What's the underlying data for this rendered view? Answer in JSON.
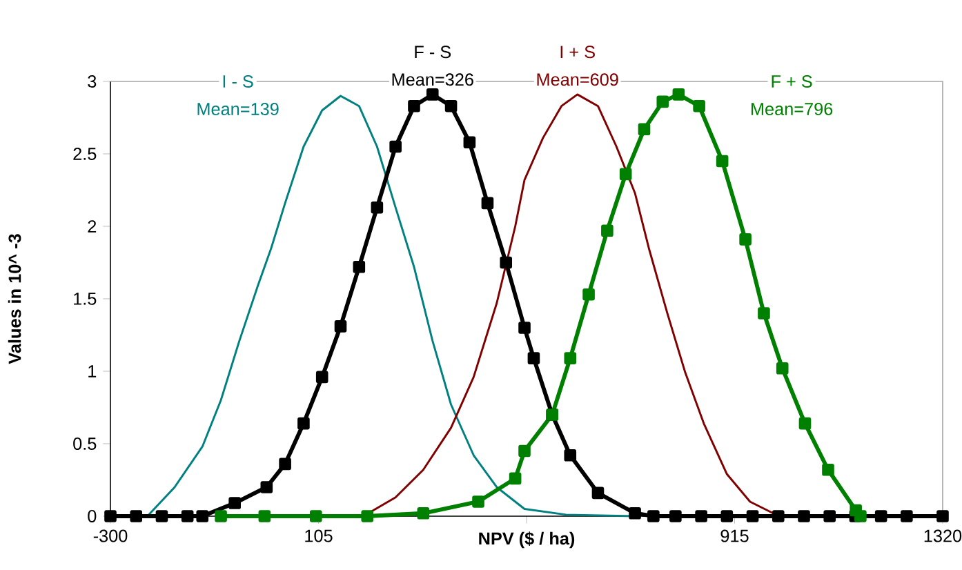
{
  "chart_data": {
    "type": "line",
    "xlabel": "NPV ($ / ha)",
    "ylabel": "Values in 10^ -3",
    "xlim": [
      -300,
      1320
    ],
    "ylim": [
      0,
      3
    ],
    "xticks": [
      -300,
      105,
      {
        "value": 510,
        "label": null
      },
      915,
      1320
    ],
    "yticks": [
      0,
      0.5,
      1,
      1.5,
      2,
      2.5,
      3
    ],
    "grid": false,
    "series": [
      {
        "name": "I - S",
        "color": "#008080",
        "marker": "none",
        "x": [
          -300,
          -228,
          -175,
          -121,
          -85,
          -49,
          -13,
          13,
          40,
          76,
          112,
          148,
          184,
          219,
          255,
          291,
          327,
          363,
          407,
          452,
          506,
          587,
          721
        ],
        "values": [
          0,
          0,
          0.2,
          0.48,
          0.8,
          1.21,
          1.59,
          1.85,
          2.16,
          2.55,
          2.8,
          2.9,
          2.83,
          2.55,
          2.13,
          1.72,
          1.21,
          0.77,
          0.42,
          0.2,
          0.05,
          0.01,
          0
        ]
      },
      {
        "name": "F - S",
        "color": "#000000",
        "marker": "square",
        "x": [
          -300,
          -250,
          -200,
          -150,
          -121,
          -58,
          4,
          40,
          76,
          112,
          148,
          184,
          219,
          255,
          291,
          327,
          363,
          399,
          434,
          470,
          506,
          524,
          560,
          595,
          649,
          721,
          757,
          800,
          850,
          900,
          950,
          1000,
          1050,
          1100,
          1150,
          1200,
          1250,
          1320
        ],
        "values": [
          0,
          0,
          0,
          0,
          0,
          0.09,
          0.2,
          0.36,
          0.64,
          0.96,
          1.31,
          1.72,
          2.13,
          2.55,
          2.83,
          2.91,
          2.83,
          2.58,
          2.16,
          1.75,
          1.3,
          1.09,
          0.7,
          0.42,
          0.16,
          0.02,
          0,
          0,
          0,
          0,
          0,
          0,
          0,
          0,
          0,
          0,
          0,
          0
        ]
      },
      {
        "name": "I + S",
        "color": "#800000",
        "marker": "none",
        "x": [
          202,
          255,
          309,
          363,
          407,
          452,
          488,
          506,
          542,
          578,
          609,
          649,
          685,
          721,
          748,
          784,
          819,
          855,
          900,
          945,
          990
        ],
        "values": [
          0.02,
          0.13,
          0.32,
          0.61,
          0.96,
          1.47,
          2.0,
          2.32,
          2.61,
          2.83,
          2.91,
          2.83,
          2.55,
          2.23,
          1.85,
          1.4,
          0.99,
          0.64,
          0.29,
          0.1,
          0.02
        ]
      },
      {
        "name": "F + S",
        "color": "#008000",
        "marker": "square",
        "x": [
          -85,
          0,
          100,
          200,
          309,
          416,
          488,
          506,
          560,
          595,
          631,
          667,
          703,
          739,
          775,
          806,
          846,
          891,
          936,
          972,
          1008,
          1052,
          1097,
          1151,
          1160
        ],
        "values": [
          0,
          0,
          0,
          0,
          0.02,
          0.1,
          0.26,
          0.45,
          0.7,
          1.09,
          1.53,
          1.97,
          2.36,
          2.67,
          2.86,
          2.91,
          2.83,
          2.45,
          1.91,
          1.4,
          1.02,
          0.64,
          0.32,
          0.04,
          0
        ]
      }
    ],
    "annotations": [
      "Mean=139",
      "Mean=326",
      "Mean=609",
      "Mean=796"
    ]
  }
}
